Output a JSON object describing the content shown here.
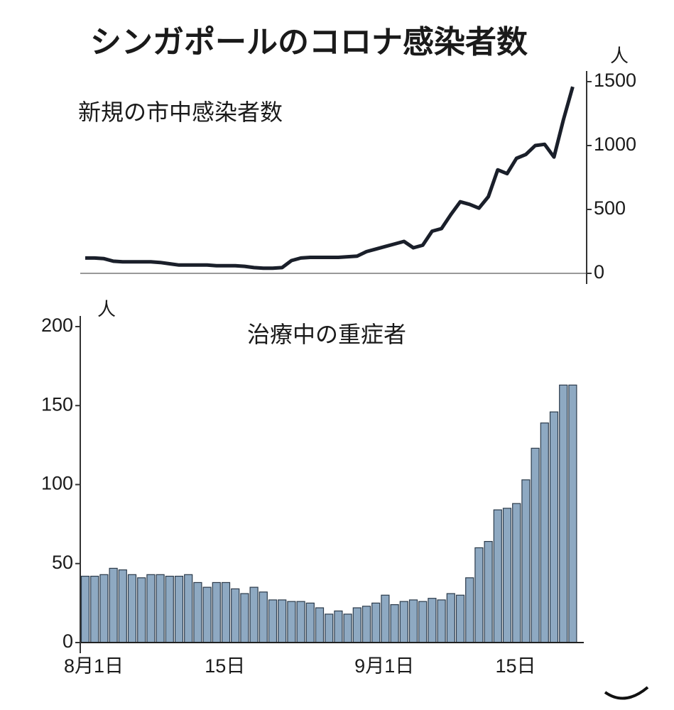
{
  "title": "シンガポールのコロナ感染者数",
  "chart_data": [
    {
      "type": "line",
      "subtitle": "新規の市中感染者数",
      "unit_label": "人",
      "color": "#1a1f2a",
      "values": [
        120,
        120,
        115,
        95,
        90,
        90,
        90,
        90,
        85,
        75,
        65,
        65,
        65,
        65,
        60,
        60,
        60,
        55,
        45,
        40,
        40,
        45,
        100,
        120,
        125,
        125,
        125,
        125,
        130,
        135,
        170,
        190,
        210,
        230,
        250,
        200,
        220,
        330,
        350,
        460,
        560,
        540,
        510,
        600,
        810,
        780,
        900,
        930,
        1000,
        1010,
        910,
        1200,
        1460
      ],
      "ylim": [
        0,
        1500
      ],
      "yticks": [
        0,
        500,
        1000,
        1500
      ],
      "grid": false
    },
    {
      "type": "bar",
      "subtitle": "治療中の重症者",
      "unit_label": "人",
      "color": "#8ea9c2",
      "categories": [
        "8月1日",
        null,
        null,
        null,
        null,
        null,
        null,
        null,
        null,
        null,
        null,
        null,
        null,
        null,
        "15日",
        null,
        null,
        null,
        null,
        null,
        null,
        null,
        null,
        null,
        null,
        null,
        null,
        null,
        null,
        null,
        null,
        "9月1日",
        null,
        null,
        null,
        null,
        null,
        null,
        null,
        null,
        null,
        null,
        null,
        null,
        null,
        "15日",
        null,
        null,
        null,
        null,
        null,
        null,
        null
      ],
      "values": [
        42,
        42,
        43,
        47,
        46,
        43,
        41,
        43,
        43,
        42,
        42,
        43,
        38,
        35,
        38,
        38,
        34,
        31,
        35,
        32,
        27,
        27,
        26,
        26,
        25,
        22,
        18,
        20,
        18,
        22,
        23,
        25,
        30,
        24,
        26,
        27,
        26,
        28,
        27,
        31,
        30,
        41,
        60,
        64,
        84,
        85,
        88,
        103,
        123,
        139,
        146,
        163,
        163
      ],
      "ylim": [
        0,
        200
      ],
      "yticks": [
        0,
        50,
        100,
        150,
        200
      ],
      "grid": false
    }
  ]
}
